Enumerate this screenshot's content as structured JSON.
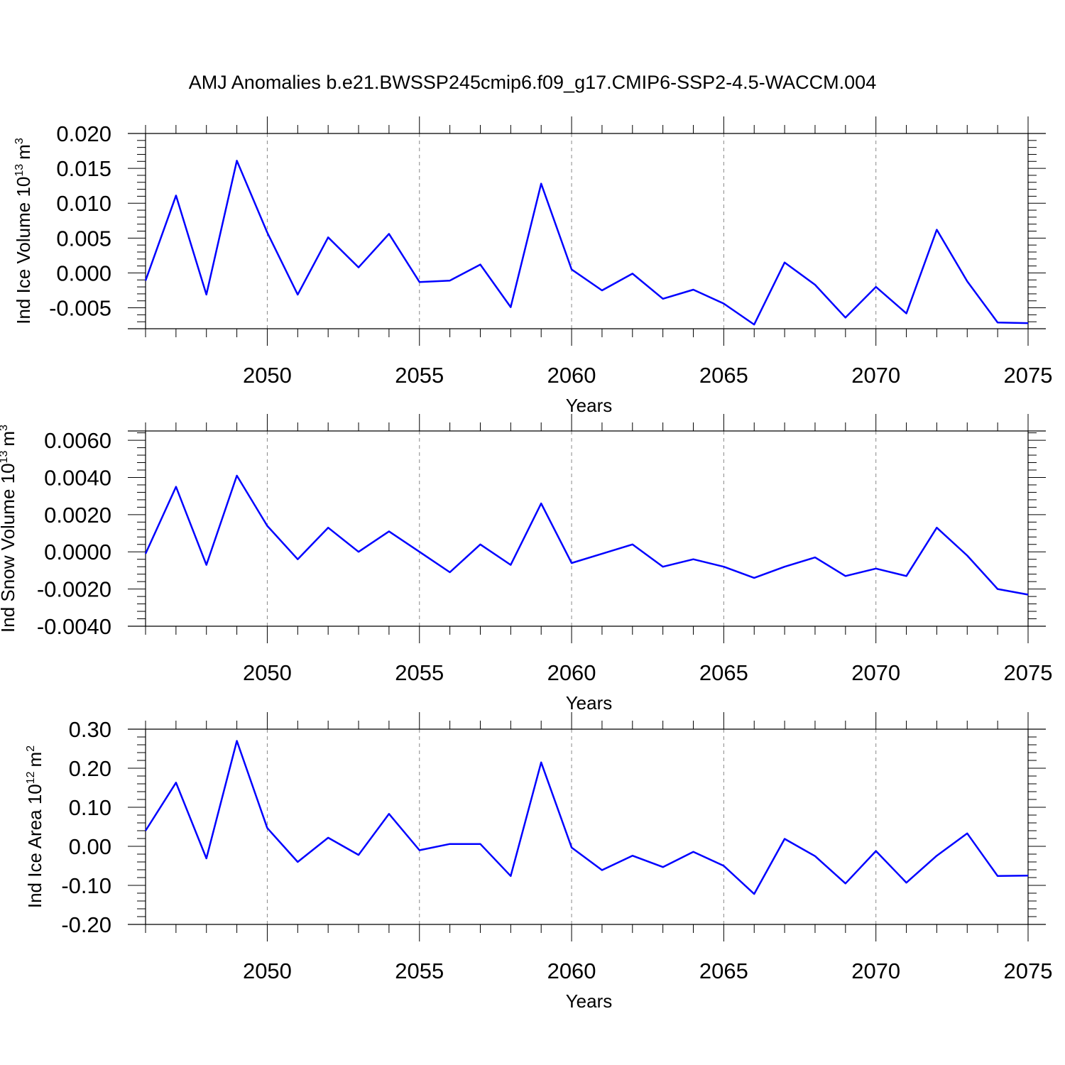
{
  "title": "AMJ Anomalies b.e21.BWSSP245cmip6.f09_g17.CMIP6-SSP2-4.5-WACCM.004",
  "colors": {
    "line": "#0000ff",
    "axis": "#000000",
    "grid": "#888888"
  },
  "chart_data": [
    {
      "type": "line",
      "xlabel": "Years",
      "ylabel": {
        "text": "Ind Ice Volume 10",
        "exponent": "13",
        "unit": "m",
        "unit_exponent": "3"
      },
      "xlim": [
        2046,
        2075
      ],
      "ylim": [
        -0.008,
        0.02
      ],
      "xticks": [
        2050,
        2055,
        2060,
        2065,
        2070,
        2075
      ],
      "xtick_labels": [
        "2050",
        "2055",
        "2060",
        "2065",
        "2070",
        "2075"
      ],
      "yticks": [
        0.02,
        0.015,
        0.01,
        0.005,
        0.0,
        -0.005
      ],
      "ytick_labels": [
        "0.020",
        "0.015",
        "0.010",
        "0.005",
        "0.000",
        "-0.005"
      ],
      "grid": "vertical dashed at major x ticks",
      "x": [
        2046,
        2047,
        2048,
        2049,
        2050,
        2051,
        2052,
        2053,
        2054,
        2055,
        2056,
        2057,
        2058,
        2059,
        2060,
        2061,
        2062,
        2063,
        2064,
        2065,
        2066,
        2067,
        2068,
        2069,
        2070,
        2071,
        2072,
        2073,
        2074,
        2075
      ],
      "values": [
        -0.0011,
        0.0111,
        -0.0031,
        0.0161,
        0.0058,
        -0.0031,
        0.0051,
        0.0008,
        0.0056,
        -0.0013,
        -0.0011,
        0.0012,
        -0.0049,
        0.0128,
        0.0005,
        -0.0025,
        -0.0001,
        -0.0037,
        -0.0024,
        -0.0044,
        -0.0074,
        0.0015,
        -0.0017,
        -0.0064,
        -0.002,
        -0.0058,
        0.0062,
        -0.0012,
        -0.0071,
        -0.0072
      ]
    },
    {
      "type": "line",
      "xlabel": "Years",
      "ylabel": {
        "text": "Ind Snow Volume 10",
        "exponent": "13",
        "unit": "m",
        "unit_exponent": "3"
      },
      "xlim": [
        2046,
        2075
      ],
      "ylim": [
        -0.004,
        0.0065
      ],
      "xticks": [
        2050,
        2055,
        2060,
        2065,
        2070,
        2075
      ],
      "xtick_labels": [
        "2050",
        "2055",
        "2060",
        "2065",
        "2070",
        "2075"
      ],
      "yticks": [
        0.006,
        0.004,
        0.002,
        0.0,
        -0.002,
        -0.004
      ],
      "ytick_labels": [
        "0.0060",
        "0.0040",
        "0.0020",
        "0.0000",
        "-0.0020",
        "-0.0040"
      ],
      "grid": "vertical dashed at major x ticks",
      "x": [
        2046,
        2047,
        2048,
        2049,
        2050,
        2051,
        2052,
        2053,
        2054,
        2055,
        2056,
        2057,
        2058,
        2059,
        2060,
        2061,
        2062,
        2063,
        2064,
        2065,
        2066,
        2067,
        2068,
        2069,
        2070,
        2071,
        2072,
        2073,
        2074,
        2075
      ],
      "values": [
        -0.0001,
        0.0035,
        -0.0007,
        0.0041,
        0.0014,
        -0.0004,
        0.0013,
        0.0,
        0.0011,
        0.0,
        -0.0011,
        0.0004,
        -0.0007,
        0.0026,
        -0.0006,
        -0.0001,
        0.0004,
        -0.0008,
        -0.0004,
        -0.0008,
        -0.0014,
        -0.0008,
        -0.0003,
        -0.0013,
        -0.0009,
        -0.0013,
        0.0013,
        -0.0002,
        -0.002,
        -0.0023
      ]
    },
    {
      "type": "line",
      "xlabel": "Years",
      "ylabel": {
        "text": "Ind Ice Area 10",
        "exponent": "12",
        "unit": "m",
        "unit_exponent": "2"
      },
      "xlim": [
        2046,
        2075
      ],
      "ylim": [
        -0.2,
        0.3
      ],
      "xticks": [
        2050,
        2055,
        2060,
        2065,
        2070,
        2075
      ],
      "xtick_labels": [
        "2050",
        "2055",
        "2060",
        "2065",
        "2070",
        "2075"
      ],
      "yticks": [
        0.3,
        0.2,
        0.1,
        0.0,
        -0.1,
        -0.2
      ],
      "ytick_labels": [
        "0.30",
        "0.20",
        "0.10",
        "0.00",
        "-0.10",
        "-0.20"
      ],
      "grid": "vertical dashed at major x ticks",
      "x": [
        2046,
        2047,
        2048,
        2049,
        2050,
        2051,
        2052,
        2053,
        2054,
        2055,
        2056,
        2057,
        2058,
        2059,
        2060,
        2061,
        2062,
        2063,
        2064,
        2065,
        2066,
        2067,
        2068,
        2069,
        2070,
        2071,
        2072,
        2073,
        2074,
        2075
      ],
      "values": [
        0.04,
        0.163,
        -0.031,
        0.27,
        0.047,
        -0.04,
        0.022,
        -0.022,
        0.083,
        -0.01,
        0.006,
        0.006,
        -0.076,
        0.215,
        -0.003,
        -0.061,
        -0.024,
        -0.053,
        -0.014,
        -0.05,
        -0.122,
        0.019,
        -0.025,
        -0.095,
        -0.012,
        -0.093,
        -0.024,
        0.033,
        -0.076,
        -0.075
      ]
    }
  ]
}
